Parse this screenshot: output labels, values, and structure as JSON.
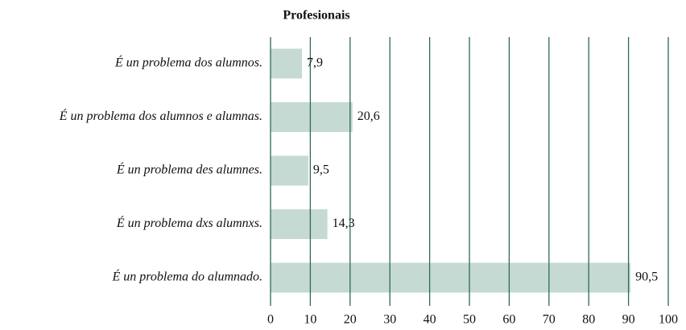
{
  "chart_data": {
    "type": "bar",
    "orientation": "horizontal",
    "title": "Profesionais",
    "categories": [
      "É un problema dos alumnos.",
      "É un problema dos alumnos e alumnas.",
      "É un problema des alumnes.",
      "É un problema dxs alumnxs.",
      "É un problema do alumnado."
    ],
    "values": [
      7.9,
      20.6,
      9.5,
      14.3,
      90.5
    ],
    "value_labels": [
      "7,9",
      "20,6",
      "9,5",
      "14,3",
      "90,5"
    ],
    "color": "#c5dad3",
    "grid_color": "#2f6a50",
    "xlim": [
      0,
      100
    ],
    "xticks": [
      0,
      10,
      20,
      30,
      40,
      50,
      60,
      70,
      80,
      90,
      100
    ],
    "grid": true
  }
}
